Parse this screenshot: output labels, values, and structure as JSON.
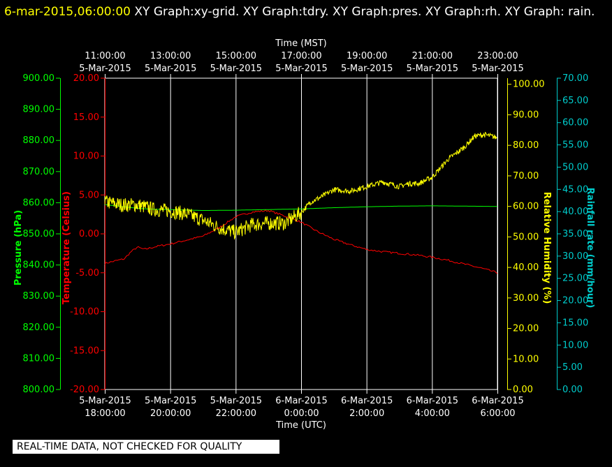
{
  "header": {
    "timestamp": "6-mar-2015,06:00:00",
    "graphs": "XY Graph:xy-grid.  XY Graph:tdry.  XY Graph:pres.  XY Graph:rh.  XY Graph: rain."
  },
  "disclaimer": "REAL-TIME DATA, NOT CHECKED FOR QUALITY",
  "colors": {
    "temperature": "#ff0000",
    "pressure": "#00ff00",
    "humidity": "#ffff00",
    "rainfall": "#00cccc",
    "grid": "#ffffff",
    "background": "#000000"
  },
  "chart_data": {
    "type": "line",
    "grid": true,
    "x_top": {
      "label": "Time (MST)",
      "ticks": [
        [
          "11:00:00",
          "5-Mar-2015"
        ],
        [
          "13:00:00",
          "5-Mar-2015"
        ],
        [
          "15:00:00",
          "5-Mar-2015"
        ],
        [
          "17:00:00",
          "5-Mar-2015"
        ],
        [
          "19:00:00",
          "5-Mar-2015"
        ],
        [
          "21:00:00",
          "5-Mar-2015"
        ],
        [
          "23:00:00",
          "5-Mar-2015"
        ]
      ]
    },
    "x_bottom": {
      "label": "Time (UTC)",
      "ticks": [
        [
          "5-Mar-2015",
          "18:00:00"
        ],
        [
          "5-Mar-2015",
          "20:00:00"
        ],
        [
          "5-Mar-2015",
          "22:00:00"
        ],
        [
          "6-Mar-2015",
          "0:00:00"
        ],
        [
          "6-Mar-2015",
          "2:00:00"
        ],
        [
          "6-Mar-2015",
          "4:00:00"
        ],
        [
          "6-Mar-2015",
          "6:00:00"
        ]
      ],
      "range_hours": [
        0,
        12
      ]
    },
    "axes": {
      "pressure": {
        "label": "Pressure (hPa)",
        "ylim": [
          800,
          900
        ],
        "ticks": [
          "800.00",
          "810.00",
          "820.00",
          "830.00",
          "840.00",
          "850.00",
          "860.00",
          "870.00",
          "880.00",
          "890.00",
          "900.00"
        ]
      },
      "temperature": {
        "label": "Temperature (Celsius)",
        "ylim": [
          -20,
          20
        ],
        "ticks": [
          "-20.00",
          "-15.00",
          "-10.00",
          "-5.00",
          "0.00",
          "5.00",
          "10.00",
          "15.00",
          "20.00"
        ]
      },
      "humidity": {
        "label": "Relative Humidity (%)",
        "ylim": [
          0,
          102
        ],
        "ticks": [
          "0.00",
          "10.00",
          "20.00",
          "30.00",
          "40.00",
          "50.00",
          "60.00",
          "70.00",
          "80.00",
          "90.00",
          "100.00"
        ]
      },
      "rainfall": {
        "label": "Rainfall rate (mm/hour)",
        "ylim": [
          0,
          70
        ],
        "ticks": [
          "0.00",
          "5.00",
          "10.00",
          "15.00",
          "20.00",
          "25.00",
          "30.00",
          "35.00",
          "40.00",
          "45.00",
          "50.00",
          "55.00",
          "60.00",
          "65.00",
          "70.00"
        ]
      }
    },
    "series": [
      {
        "name": "tdry",
        "axis": "temperature",
        "x": [
          0,
          0.3,
          0.6,
          0.8,
          1.0,
          1.2,
          1.4,
          1.6,
          2.0,
          2.5,
          3.0,
          3.5,
          4.0,
          4.5,
          5.0,
          5.5,
          6.0,
          6.5,
          7.0,
          7.5,
          8.0,
          8.5,
          9.0,
          9.5,
          10.0,
          10.5,
          11.0,
          11.5,
          12.0
        ],
        "y": [
          -3.8,
          -3.5,
          -3.2,
          -2.3,
          -1.7,
          -2.0,
          -1.8,
          -1.6,
          -1.3,
          -0.8,
          -0.3,
          0.8,
          2.2,
          2.8,
          3.0,
          2.3,
          1.5,
          0.3,
          -0.7,
          -1.4,
          -2.0,
          -2.3,
          -2.5,
          -2.7,
          -3.0,
          -3.4,
          -3.9,
          -4.4,
          -5.0
        ]
      },
      {
        "name": "pres",
        "axis": "pressure",
        "x": [
          0,
          0.5,
          1.0,
          1.5,
          2.0,
          3.0,
          4.0,
          5.0,
          6.0,
          7.0,
          8.0,
          9.0,
          10.0,
          11.0,
          12.0
        ],
        "y": [
          859.4,
          858.8,
          858.2,
          857.9,
          857.8,
          857.5,
          857.6,
          857.8,
          858.0,
          858.4,
          858.7,
          858.9,
          859.0,
          858.9,
          858.8
        ]
      },
      {
        "name": "rh",
        "axis": "humidity",
        "x": [
          0,
          0.5,
          1.0,
          1.5,
          2.0,
          2.5,
          3.0,
          3.5,
          4.0,
          4.5,
          5.0,
          5.5,
          6.0,
          6.3,
          6.6,
          7.0,
          7.5,
          8.0,
          8.5,
          9.0,
          9.3,
          9.6,
          10.0,
          10.5,
          11.0,
          11.3,
          11.6,
          12.0
        ],
        "y": [
          61.5,
          60.5,
          60.5,
          59.0,
          58.5,
          57.5,
          55.5,
          53.0,
          51.5,
          54.0,
          54.5,
          54.5,
          58.0,
          61.5,
          63.0,
          65.5,
          65.0,
          66.5,
          68.0,
          66.5,
          67.5,
          67.5,
          69.5,
          75.5,
          79.5,
          83.0,
          83.5,
          82.5
        ]
      }
    ]
  }
}
